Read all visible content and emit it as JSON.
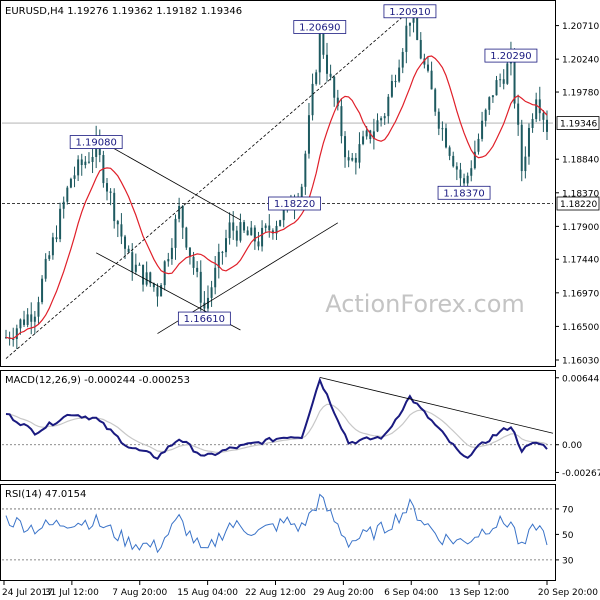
{
  "header": {
    "main_title": "EURUSD,H4  1.19276 1.19362 1.19182 1.19346",
    "macd_title": "MACD(12,26,9) -0.000244 -0.000253",
    "rsi_title": "RSI(14) 47.0154",
    "watermark": "ActionForex.com"
  },
  "colors": {
    "candle": "#1e5a60",
    "ma": "#e0202a",
    "macd": "#1a1a80",
    "signal": "#c8c8c8",
    "rsi": "#3a73c8",
    "guide": "#000000",
    "watermark": "#c4c4c4"
  },
  "chart_data": [
    {
      "type": "candlestick",
      "series": [
        {
          "name": "EURUSD",
          "values_ref": "price_path"
        },
        {
          "name": "MA",
          "style": "red-line"
        }
      ],
      "ylim": [
        1.1596,
        1.2104
      ],
      "yticks": [
        "1.20710",
        "1.20240",
        "1.19780",
        "1.18840",
        "1.18370",
        "1.17900",
        "1.17440",
        "1.16970",
        "1.16500",
        "1.16030"
      ],
      "ytick_values": [
        1.2071,
        1.2024,
        1.1978,
        1.1884,
        1.1837,
        1.179,
        1.1744,
        1.1697,
        1.165,
        1.1603
      ],
      "xticks": [
        "24 Jul 2017",
        "31 Jul 12:00",
        "7 Aug 20:00",
        "15 Aug 04:00",
        "22 Aug 12:00",
        "29 Aug 20:00",
        "6 Sep 04:00",
        "13 Sep 12:00",
        "20 Sep 20:00"
      ],
      "current_price": "1.19346",
      "current_value": 1.19346,
      "support_level": "1.18220",
      "support_value": 1.1822,
      "annotations": [
        {
          "label": "1.20910",
          "value": 1.2091,
          "bar": 112
        },
        {
          "label": "1.20690",
          "value": 1.2069,
          "bar": 87
        },
        {
          "label": "1.20290",
          "value": 1.2029,
          "bar": 140
        },
        {
          "label": "1.19080",
          "value": 1.1908,
          "bar": 25
        },
        {
          "label": "1.18370",
          "value": 1.1837,
          "bar": 127
        },
        {
          "label": "1.18220",
          "value": 1.1822,
          "bar": 80
        },
        {
          "label": "1.16610",
          "value": 1.1661,
          "bar": 55
        }
      ],
      "path_anchors": [
        [
          0,
          1.1635
        ],
        [
          8,
          1.1675
        ],
        [
          18,
          1.1858
        ],
        [
          25,
          1.19
        ],
        [
          34,
          1.1742
        ],
        [
          42,
          1.17
        ],
        [
          48,
          1.1812
        ],
        [
          55,
          1.1675
        ],
        [
          62,
          1.1788
        ],
        [
          70,
          1.177
        ],
        [
          78,
          1.1815
        ],
        [
          82,
          1.185
        ],
        [
          87,
          1.206
        ],
        [
          95,
          1.1875
        ],
        [
          105,
          1.195
        ],
        [
          112,
          1.2085
        ],
        [
          120,
          1.194
        ],
        [
          127,
          1.1845
        ],
        [
          135,
          1.198
        ],
        [
          140,
          1.202
        ],
        [
          143,
          1.187
        ],
        [
          147,
          1.198
        ],
        [
          150,
          1.193
        ]
      ],
      "guides": [
        {
          "name": "upper-channel-line",
          "from": [
            25,
            1.1913
          ],
          "to": [
            65,
            1.1799
          ]
        },
        {
          "name": "lower-channel-line",
          "from": [
            25,
            1.1753
          ],
          "to": [
            65,
            1.1645
          ]
        },
        {
          "name": "uptrend-line",
          "from": [
            42,
            1.164
          ],
          "to": [
            92,
            1.1795
          ]
        },
        {
          "name": "dashed-trend-line",
          "from": [
            0,
            1.1605
          ],
          "to": [
            112,
            1.2092
          ]
        }
      ]
    },
    {
      "type": "line",
      "name": "MACD",
      "ylim": [
        -0.0033,
        0.007
      ],
      "yticks": [
        "0.006445",
        "0.00",
        "-0.00267"
      ],
      "ytick_values": [
        0.006445,
        0.0,
        -0.00267
      ],
      "last_macd": -0.000244,
      "last_signal": -0.000253,
      "anchors": [
        [
          0,
          0.003
        ],
        [
          8,
          0.0012
        ],
        [
          18,
          0.003
        ],
        [
          25,
          0.0025
        ],
        [
          34,
          -0.0002
        ],
        [
          42,
          -0.0012
        ],
        [
          48,
          0.0006
        ],
        [
          55,
          -0.0012
        ],
        [
          62,
          -0.0004
        ],
        [
          70,
          0.0002
        ],
        [
          78,
          0.0008
        ],
        [
          82,
          0.0008
        ],
        [
          87,
          0.0063
        ],
        [
          95,
          0.0002
        ],
        [
          105,
          0.0008
        ],
        [
          112,
          0.0046
        ],
        [
          120,
          0.0015
        ],
        [
          127,
          -0.0013
        ],
        [
          135,
          0.0008
        ],
        [
          140,
          0.0018
        ],
        [
          143,
          -0.0005
        ],
        [
          147,
          0.0002
        ],
        [
          150,
          -0.00024
        ]
      ],
      "guide": {
        "from": [
          87,
          0.00648
        ],
        "to": [
          150,
          0.0011
        ]
      }
    },
    {
      "type": "line",
      "name": "RSI",
      "ylim": [
        15,
        88
      ],
      "yticks": [
        "70",
        "50",
        "30"
      ],
      "ytick_values": [
        70,
        50,
        30
      ],
      "last_value": 47.0154,
      "anchors": [
        [
          0,
          62
        ],
        [
          8,
          55
        ],
        [
          18,
          60
        ],
        [
          25,
          60
        ],
        [
          34,
          44
        ],
        [
          42,
          40
        ],
        [
          48,
          62
        ],
        [
          55,
          34
        ],
        [
          62,
          58
        ],
        [
          70,
          52
        ],
        [
          78,
          60
        ],
        [
          82,
          55
        ],
        [
          87,
          78
        ],
        [
          95,
          44
        ],
        [
          105,
          55
        ],
        [
          112,
          72
        ],
        [
          120,
          48
        ],
        [
          127,
          44
        ],
        [
          135,
          58
        ],
        [
          140,
          60
        ],
        [
          143,
          38
        ],
        [
          147,
          58
        ],
        [
          150,
          47
        ]
      ]
    }
  ]
}
